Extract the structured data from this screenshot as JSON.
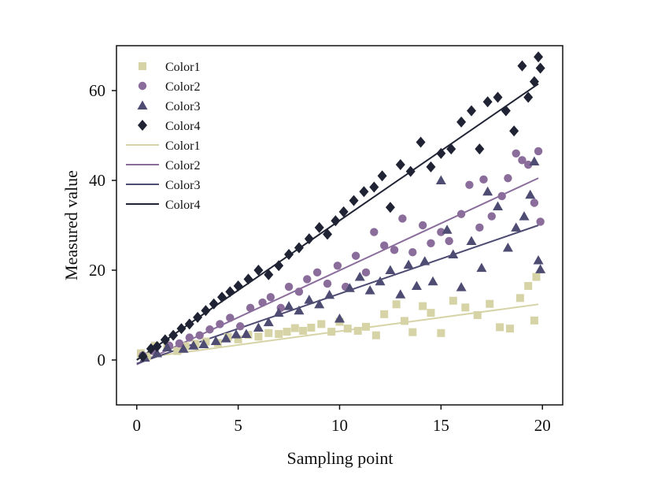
{
  "chart_data": {
    "type": "scatter",
    "title": "",
    "xlabel": "Sampling point",
    "ylabel": "Measured value",
    "xlim": [
      -1,
      21
    ],
    "ylim": [
      -10,
      70
    ],
    "xticks": [
      0,
      5,
      10,
      15,
      20
    ],
    "yticks": [
      0,
      20,
      40,
      60
    ],
    "grid": false,
    "legend_position": "top-left",
    "series": [
      {
        "name": "Color1",
        "marker": "square",
        "color": "#d6d4a6",
        "points": [
          [
            0.2,
            1.5
          ],
          [
            0.5,
            0.8
          ],
          [
            0.9,
            3.2
          ],
          [
            1.5,
            2.8
          ],
          [
            2.0,
            2.0
          ],
          [
            2.4,
            3.1
          ],
          [
            2.9,
            3.6
          ],
          [
            3.4,
            4.1
          ],
          [
            4.0,
            3.8
          ],
          [
            4.5,
            5.1
          ],
          [
            5.0,
            4.6
          ],
          [
            5.5,
            5.6
          ],
          [
            6.0,
            5.2
          ],
          [
            6.5,
            6.0
          ],
          [
            7.0,
            5.8
          ],
          [
            7.4,
            6.3
          ],
          [
            7.8,
            7.1
          ],
          [
            8.2,
            6.5
          ],
          [
            8.6,
            7.2
          ],
          [
            9.1,
            8.0
          ],
          [
            9.6,
            6.3
          ],
          [
            10.0,
            8.5
          ],
          [
            10.4,
            7.0
          ],
          [
            10.9,
            6.5
          ],
          [
            11.3,
            7.4
          ],
          [
            11.8,
            5.5
          ],
          [
            12.2,
            10.2
          ],
          [
            12.8,
            12.4
          ],
          [
            13.2,
            8.7
          ],
          [
            13.6,
            6.2
          ],
          [
            14.1,
            12.0
          ],
          [
            14.5,
            10.5
          ],
          [
            15.0,
            6.0
          ],
          [
            15.6,
            13.2
          ],
          [
            16.2,
            11.7
          ],
          [
            16.8,
            10.0
          ],
          [
            17.4,
            12.5
          ],
          [
            17.9,
            7.3
          ],
          [
            18.4,
            7.0
          ],
          [
            18.9,
            13.8
          ],
          [
            19.3,
            16.5
          ],
          [
            19.6,
            8.8
          ],
          [
            19.7,
            18.5
          ]
        ],
        "fit": [
          [
            0,
            0.3
          ],
          [
            19.8,
            12.4
          ]
        ]
      },
      {
        "name": "Color2",
        "marker": "circle",
        "color": "#8a6d9b",
        "points": [
          [
            0.3,
            1.0
          ],
          [
            0.8,
            2.0
          ],
          [
            1.6,
            3.2
          ],
          [
            2.1,
            3.7
          ],
          [
            2.6,
            5.0
          ],
          [
            3.1,
            5.5
          ],
          [
            3.6,
            6.8
          ],
          [
            4.1,
            8.0
          ],
          [
            4.6,
            9.4
          ],
          [
            5.1,
            7.5
          ],
          [
            5.6,
            11.6
          ],
          [
            6.2,
            12.8
          ],
          [
            6.6,
            14.0
          ],
          [
            7.1,
            11.6
          ],
          [
            7.5,
            16.3
          ],
          [
            8.0,
            15.2
          ],
          [
            8.4,
            18.0
          ],
          [
            8.9,
            19.5
          ],
          [
            9.4,
            17.0
          ],
          [
            9.9,
            21.0
          ],
          [
            10.3,
            16.3
          ],
          [
            10.8,
            23.2
          ],
          [
            11.3,
            19.5
          ],
          [
            11.7,
            28.5
          ],
          [
            12.2,
            25.5
          ],
          [
            12.7,
            24.5
          ],
          [
            13.1,
            31.5
          ],
          [
            13.6,
            24.0
          ],
          [
            14.1,
            30.0
          ],
          [
            14.5,
            26.0
          ],
          [
            15.0,
            28.5
          ],
          [
            15.4,
            26.5
          ],
          [
            16.0,
            32.5
          ],
          [
            16.4,
            39.0
          ],
          [
            16.9,
            29.5
          ],
          [
            17.1,
            40.2
          ],
          [
            17.5,
            32.0
          ],
          [
            18.0,
            36.5
          ],
          [
            18.3,
            40.5
          ],
          [
            18.7,
            46.0
          ],
          [
            19.0,
            44.5
          ],
          [
            19.3,
            43.5
          ],
          [
            19.6,
            35.0
          ],
          [
            19.8,
            46.5
          ],
          [
            19.9,
            30.8
          ]
        ],
        "fit": [
          [
            0,
            -1.0
          ],
          [
            19.8,
            40.5
          ]
        ]
      },
      {
        "name": "Color3",
        "marker": "triangle",
        "color": "#4f4c73",
        "points": [
          [
            0.4,
            0.5
          ],
          [
            1.0,
            1.5
          ],
          [
            1.5,
            2.8
          ],
          [
            2.3,
            2.5
          ],
          [
            2.8,
            3.2
          ],
          [
            3.3,
            3.5
          ],
          [
            3.9,
            4.2
          ],
          [
            4.4,
            4.8
          ],
          [
            4.9,
            5.7
          ],
          [
            5.4,
            5.8
          ],
          [
            6.0,
            7.2
          ],
          [
            6.5,
            8.4
          ],
          [
            7.0,
            10.5
          ],
          [
            7.5,
            12.0
          ],
          [
            8.0,
            11.0
          ],
          [
            8.5,
            13.4
          ],
          [
            9.0,
            12.4
          ],
          [
            9.5,
            14.5
          ],
          [
            10.0,
            9.2
          ],
          [
            10.5,
            16.0
          ],
          [
            11.0,
            18.5
          ],
          [
            11.5,
            15.5
          ],
          [
            12.0,
            17.5
          ],
          [
            12.5,
            20.0
          ],
          [
            13.0,
            14.6
          ],
          [
            13.4,
            21.2
          ],
          [
            13.8,
            16.5
          ],
          [
            14.2,
            22.0
          ],
          [
            14.6,
            17.5
          ],
          [
            15.0,
            40.0
          ],
          [
            15.3,
            29.0
          ],
          [
            15.6,
            23.5
          ],
          [
            16.0,
            16.2
          ],
          [
            16.5,
            26.5
          ],
          [
            17.0,
            20.5
          ],
          [
            17.3,
            37.5
          ],
          [
            17.8,
            34.2
          ],
          [
            18.3,
            25.0
          ],
          [
            18.7,
            29.5
          ],
          [
            19.1,
            32.0
          ],
          [
            19.4,
            36.8
          ],
          [
            19.6,
            44.2
          ],
          [
            19.8,
            22.2
          ],
          [
            19.9,
            20.2
          ]
        ],
        "fit": [
          [
            0,
            -0.8
          ],
          [
            19.8,
            30.0
          ]
        ]
      },
      {
        "name": "Color4",
        "marker": "diamond",
        "color": "#1f2333",
        "points": [
          [
            0.3,
            0.8
          ],
          [
            0.7,
            2.5
          ],
          [
            1.0,
            3.0
          ],
          [
            1.4,
            4.5
          ],
          [
            1.8,
            5.5
          ],
          [
            2.2,
            7.0
          ],
          [
            2.6,
            8.0
          ],
          [
            3.0,
            9.5
          ],
          [
            3.4,
            11.0
          ],
          [
            3.8,
            12.5
          ],
          [
            4.2,
            14.0
          ],
          [
            4.6,
            15.2
          ],
          [
            5.0,
            16.5
          ],
          [
            5.5,
            18.0
          ],
          [
            6.0,
            20.0
          ],
          [
            6.5,
            19.0
          ],
          [
            7.0,
            21.0
          ],
          [
            7.5,
            23.5
          ],
          [
            8.0,
            25.0
          ],
          [
            8.5,
            27.0
          ],
          [
            9.0,
            29.5
          ],
          [
            9.4,
            28.0
          ],
          [
            9.8,
            31.0
          ],
          [
            10.2,
            33.0
          ],
          [
            10.7,
            35.5
          ],
          [
            11.2,
            37.5
          ],
          [
            11.7,
            38.5
          ],
          [
            12.1,
            41.0
          ],
          [
            12.5,
            34.0
          ],
          [
            13.0,
            43.5
          ],
          [
            13.5,
            42.0
          ],
          [
            14.0,
            48.5
          ],
          [
            14.5,
            43.0
          ],
          [
            15.0,
            46.0
          ],
          [
            15.5,
            47.0
          ],
          [
            16.0,
            53.0
          ],
          [
            16.5,
            55.5
          ],
          [
            16.9,
            47.0
          ],
          [
            17.3,
            57.5
          ],
          [
            17.8,
            58.5
          ],
          [
            18.2,
            55.5
          ],
          [
            18.6,
            51.0
          ],
          [
            19.0,
            65.5
          ],
          [
            19.3,
            58.5
          ],
          [
            19.6,
            62.0
          ],
          [
            19.8,
            67.5
          ],
          [
            19.9,
            65.0
          ]
        ],
        "fit": [
          [
            0,
            0.0
          ],
          [
            19.8,
            61.5
          ]
        ]
      }
    ]
  }
}
